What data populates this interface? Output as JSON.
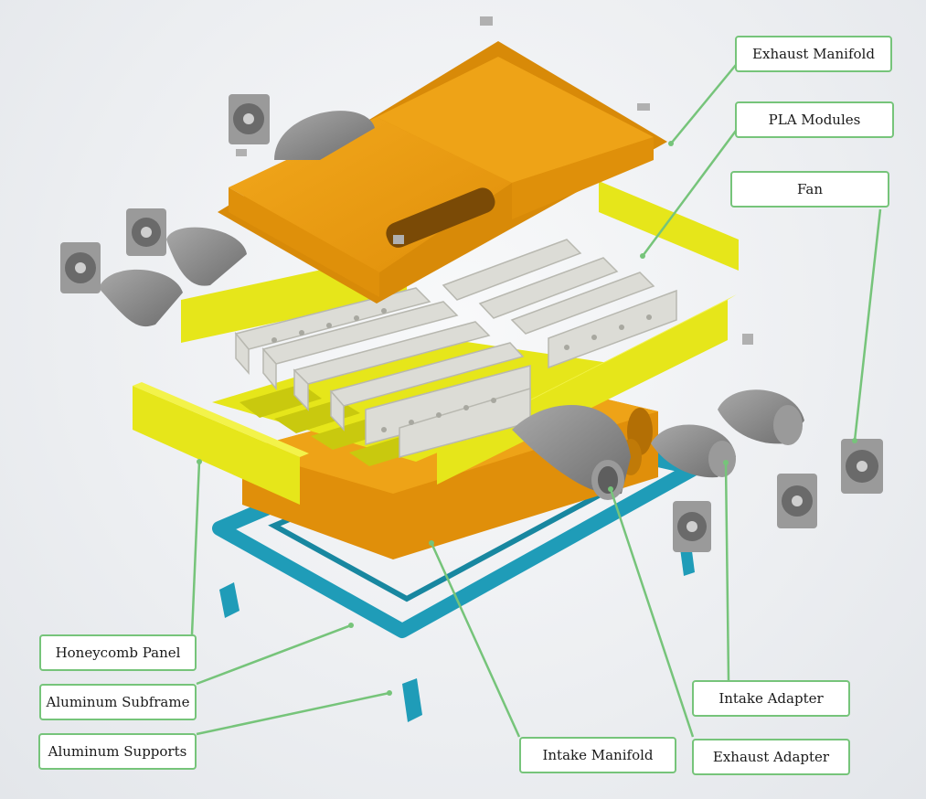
{
  "labels": {
    "exhaust_manifold": "Exhaust Manifold",
    "pla_modules": "PLA Modules",
    "fan": "Fan",
    "honeycomb_panel": "Honeycomb Panel",
    "aluminum_subframe": "Aluminum Subframe",
    "aluminum_supports": "Aluminum Supports",
    "intake_manifold": "Intake Manifold",
    "exhaust_adapter": "Exhaust Adapter",
    "intake_adapter": "Intake Adapter"
  },
  "colors": {
    "manifold_orange": "#eb9c12",
    "panel_yellow": "#e6e61a",
    "subframe_teal": "#1f9cb8",
    "module_gray": "#dcdcd6",
    "adapter_gray": "#8c8c8c",
    "fan_gray": "#9a9a9a",
    "callout_green": "#76c47a"
  }
}
